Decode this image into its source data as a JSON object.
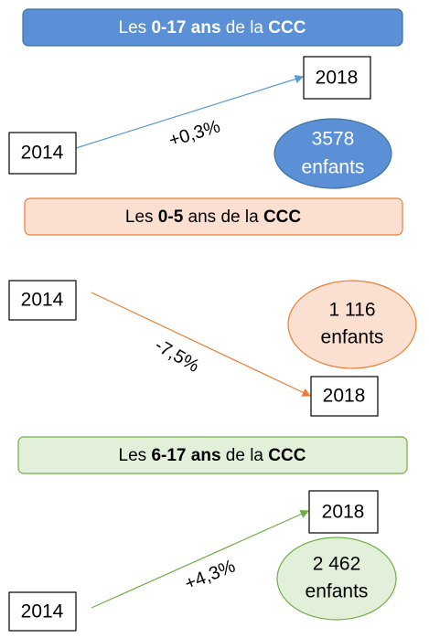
{
  "sections": [
    {
      "title": [
        "Les ",
        "0-17 ans",
        " de la ",
        "CCC"
      ],
      "from": "2014",
      "to": "2018",
      "change": "+0,3%",
      "count": "3578",
      "unit": "enfants"
    },
    {
      "title": [
        "Les ",
        "0-5",
        " ans de la ",
        "CCC"
      ],
      "from": "2014",
      "to": "2018",
      "change": "-7,5%",
      "count": "1 116",
      "unit": "enfants"
    },
    {
      "title": [
        "Les ",
        "6-17 ans",
        " de la ",
        "CCC"
      ],
      "from": "2014",
      "to": "2018",
      "change": "+4,3%",
      "count": "2 462",
      "unit": "enfants"
    }
  ]
}
